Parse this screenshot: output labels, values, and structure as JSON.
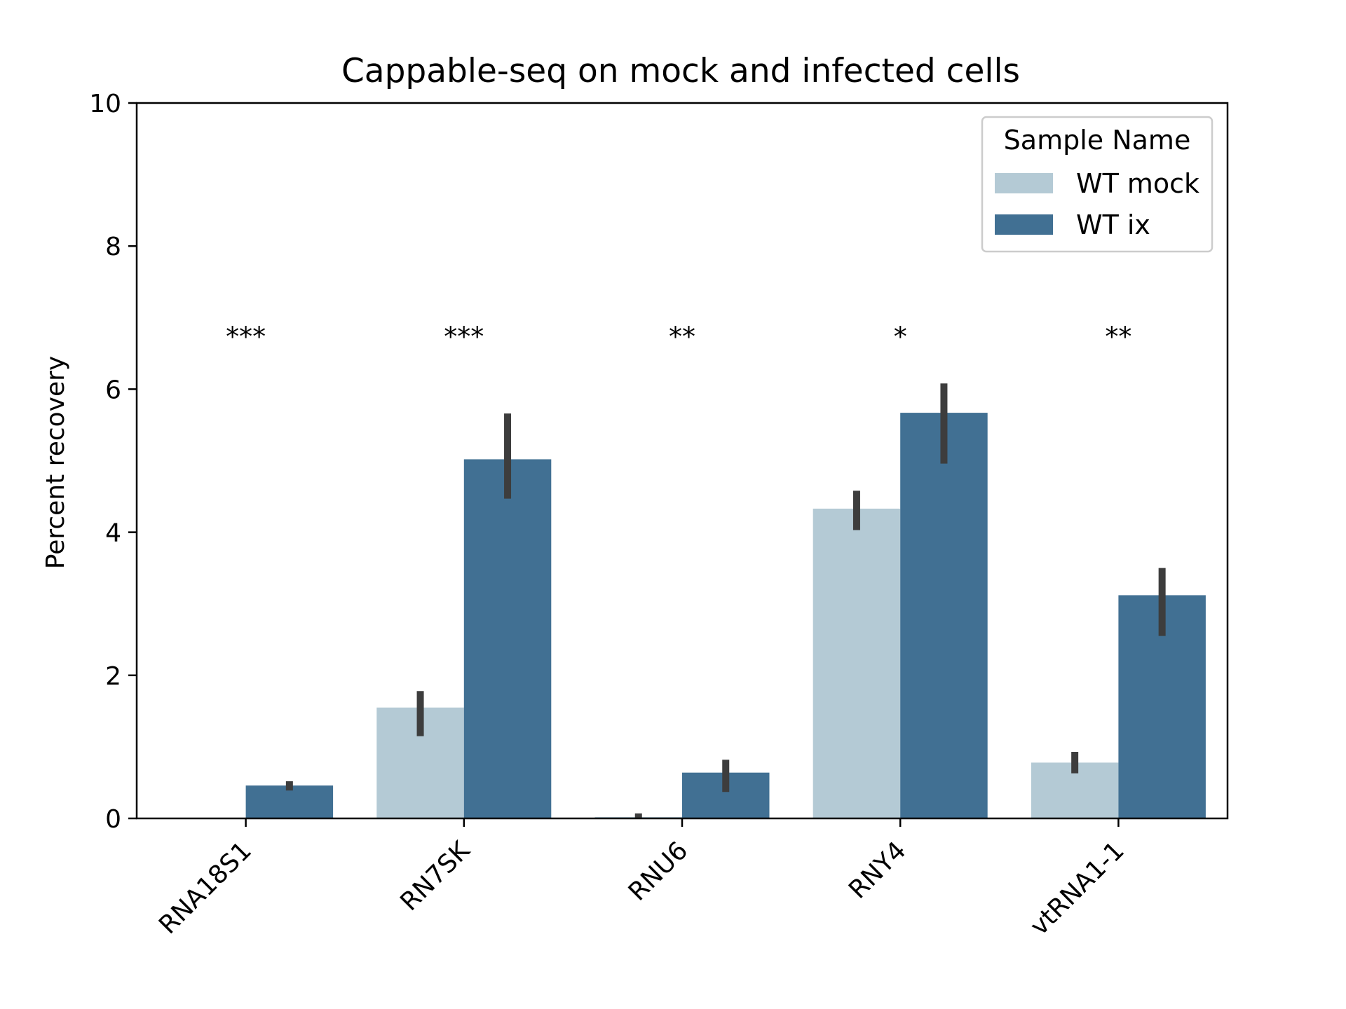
{
  "chart_data": {
    "type": "bar",
    "title": "Cappable-seq on mock and infected cells",
    "xlabel": "",
    "ylabel": "Percent recovery",
    "ylim": [
      0,
      10
    ],
    "yticks": [
      0,
      2,
      4,
      6,
      8,
      10
    ],
    "categories": [
      "RNA18S1",
      "RN7SK",
      "RNU6",
      "RNY4",
      "vtRNA1-1"
    ],
    "legend": {
      "title": "Sample Name",
      "placement": "top-right"
    },
    "series": [
      {
        "name": "WT mock",
        "color": "#b4cad5",
        "values": [
          0.0,
          1.55,
          0.02,
          4.33,
          0.78
        ],
        "error_low": [
          0.0,
          1.15,
          0.0,
          4.03,
          0.63
        ],
        "error_high": [
          0.0,
          1.78,
          0.07,
          4.58,
          0.93
        ]
      },
      {
        "name": "WT ix",
        "color": "#417093",
        "values": [
          0.46,
          5.02,
          0.64,
          5.67,
          3.12
        ],
        "error_low": [
          0.39,
          4.47,
          0.37,
          4.96,
          2.55
        ],
        "error_high": [
          0.52,
          5.66,
          0.82,
          6.08,
          3.5
        ]
      }
    ],
    "error_bar_color": "#3d3d3d",
    "significance": [
      "***",
      "***",
      "**",
      "*",
      "**"
    ],
    "significance_y": 6.8,
    "grid": false
  }
}
